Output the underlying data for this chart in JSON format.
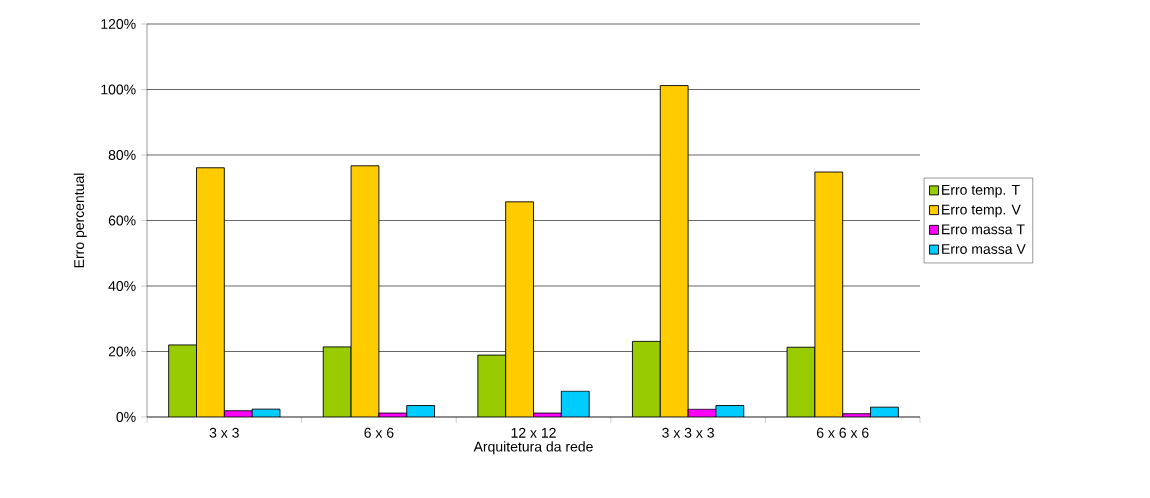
{
  "chart_data": {
    "type": "bar",
    "xlabel": "Arquitetura da rede",
    "ylabel": "Erro percentual",
    "categories": [
      "3 x 3",
      "6 x 6",
      "12 x 12",
      "3 x 3 x 3",
      "6 x 6 x 6"
    ],
    "series": [
      {
        "name": "Erro temp. T",
        "color": "#99cc00",
        "values": [
          22,
          21.4,
          18.9,
          23.1,
          21.3
        ]
      },
      {
        "name": "Erro temp. V",
        "color": "#ffcc00",
        "values": [
          76.1,
          76.7,
          65.7,
          101.2,
          74.8
        ]
      },
      {
        "name": "Erro massa T",
        "color": "#ff00ff",
        "values": [
          1.9,
          1.2,
          1.2,
          2.4,
          1.0
        ]
      },
      {
        "name": "Erro massa V",
        "color": "#00ccff",
        "values": [
          2.4,
          3.5,
          7.9,
          3.5,
          3.0
        ]
      }
    ],
    "ylim": [
      0,
      120
    ],
    "yticks": [
      {
        "value": 0,
        "label": "0%"
      },
      {
        "value": 20,
        "label": "20%"
      },
      {
        "value": 40,
        "label": "40%"
      },
      {
        "value": 60,
        "label": "60%"
      },
      {
        "value": 80,
        "label": "80%"
      },
      {
        "value": 100,
        "label": "100%"
      },
      {
        "value": 120,
        "label": "120%"
      }
    ],
    "grid": "y",
    "legend": "right"
  }
}
